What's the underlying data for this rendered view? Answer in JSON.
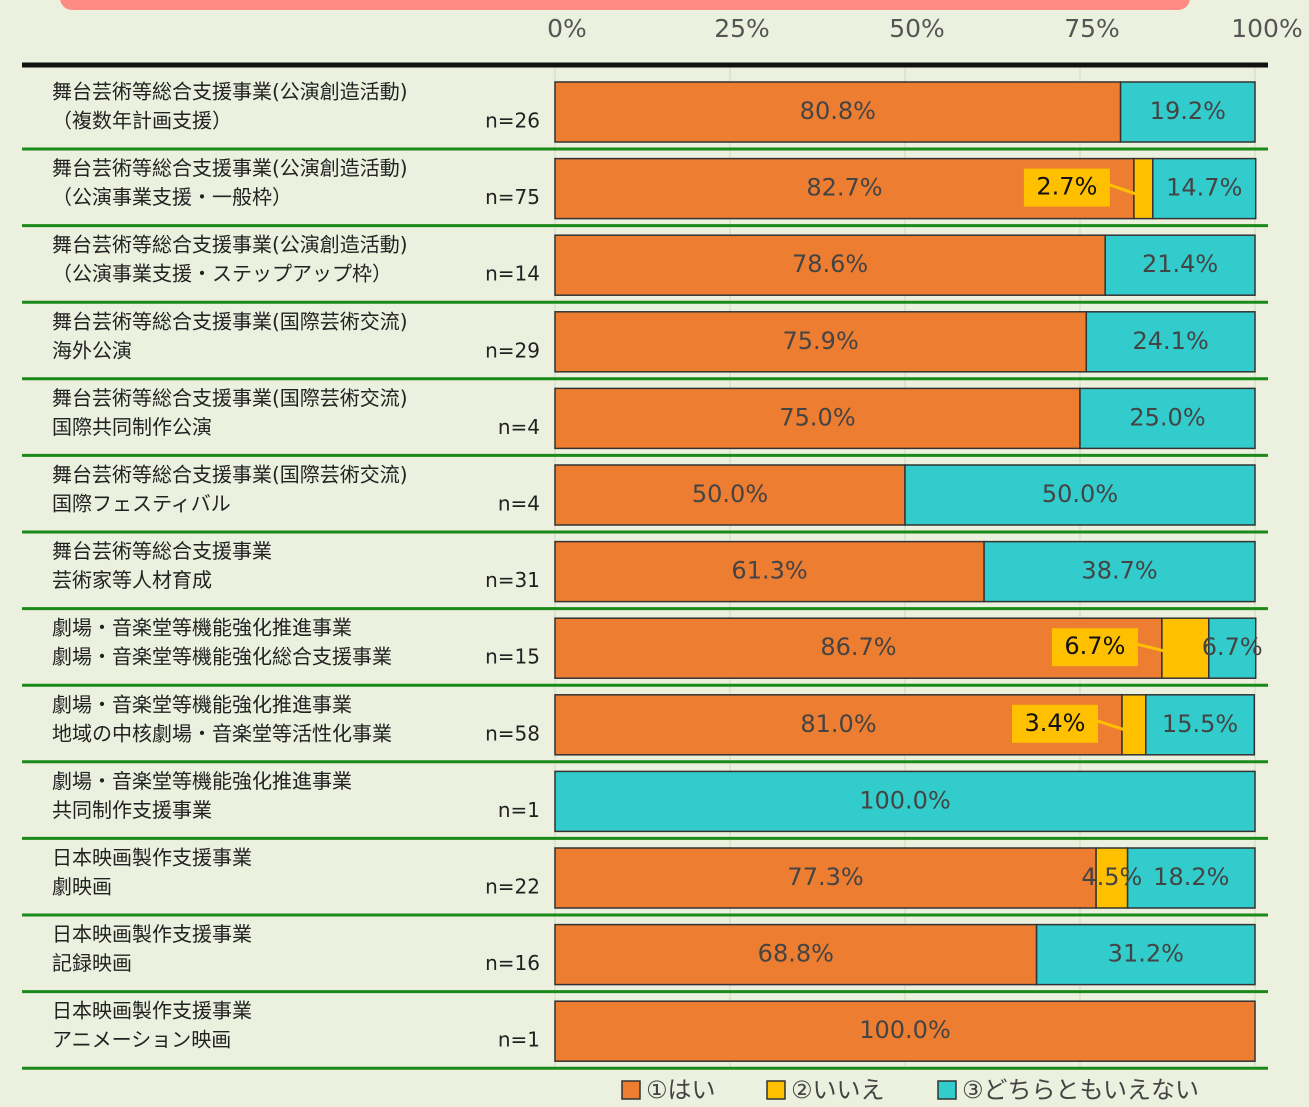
{
  "chart_data": {
    "type": "stacked-bar-horizontal",
    "categories": [
      [
        "舞台芸術等総合支援事業(公演創造活動)",
        "（複数年計画支援）"
      ],
      [
        "舞台芸術等総合支援事業(公演創造活動)",
        "（公演事業支援・一般枠）"
      ],
      [
        "舞台芸術等総合支援事業(公演創造活動)",
        "（公演事業支援・ステップアップ枠）"
      ],
      [
        "舞台芸術等総合支援事業(国際芸術交流)",
        "海外公演"
      ],
      [
        "舞台芸術等総合支援事業(国際芸術交流)",
        "国際共同制作公演"
      ],
      [
        "舞台芸術等総合支援事業(国際芸術交流)",
        "国際フェスティバル"
      ],
      [
        "舞台芸術等総合支援事業",
        "芸術家等人材育成"
      ],
      [
        "劇場・音楽堂等機能強化推進事業",
        "劇場・音楽堂等機能強化総合支援事業"
      ],
      [
        "劇場・音楽堂等機能強化推進事業",
        "地域の中核劇場・音楽堂等活性化事業"
      ],
      [
        "劇場・音楽堂等機能強化推進事業",
        "共同制作支援事業"
      ],
      [
        "日本映画製作支援事業",
        "劇映画"
      ],
      [
        "日本映画製作支援事業",
        "記録映画"
      ],
      [
        "日本映画製作支援事業",
        "アニメーション映画"
      ]
    ],
    "n_labels": [
      "n=26",
      "n=75",
      "n=14",
      "n=29",
      "n=4",
      "n=4",
      "n=31",
      "n=15",
      "n=58",
      "n=1",
      "n=22",
      "n=16",
      "n=1"
    ],
    "series": [
      {
        "name": "①はい",
        "color": "#ed7d31",
        "values": [
          80.8,
          82.7,
          78.6,
          75.9,
          75.0,
          50.0,
          61.3,
          86.7,
          81.0,
          null,
          77.3,
          68.8,
          100.0
        ],
        "value_labels": [
          "80.8%",
          "82.7%",
          "78.6%",
          "75.9%",
          "75.0%",
          "50.0%",
          "61.3%",
          "86.7%",
          "81.0%",
          null,
          "77.3%",
          "68.8%",
          "100.0%"
        ]
      },
      {
        "name": "②いいえ",
        "color": "#ffc000",
        "values": [
          null,
          2.7,
          null,
          null,
          null,
          null,
          null,
          6.7,
          3.4,
          null,
          4.5,
          null,
          null
        ],
        "value_labels": [
          null,
          "2.7%",
          null,
          null,
          null,
          null,
          null,
          "6.7%",
          "3.4%",
          null,
          "4.5%",
          null,
          null
        ]
      },
      {
        "name": "③どちらともいえない",
        "color": "#33cccc",
        "values": [
          19.2,
          14.7,
          21.4,
          24.1,
          25.0,
          50.0,
          38.7,
          6.7,
          15.5,
          100.0,
          18.2,
          31.2,
          null
        ],
        "value_labels": [
          "19.2%",
          "14.7%",
          "21.4%",
          "24.1%",
          "25.0%",
          "50.0%",
          "38.7%",
          "6.7%",
          "15.5%",
          "100.0%",
          "18.2%",
          "31.2%",
          null
        ]
      }
    ],
    "xlim": [
      0,
      100
    ],
    "xticks": [
      {
        "value": 0,
        "label": "0%"
      },
      {
        "value": 25,
        "label": "25%"
      },
      {
        "value": 50,
        "label": "50%"
      },
      {
        "value": 75,
        "label": "75%"
      },
      {
        "value": 100,
        "label": "100%"
      }
    ],
    "grid": true,
    "legend": "bottom"
  }
}
